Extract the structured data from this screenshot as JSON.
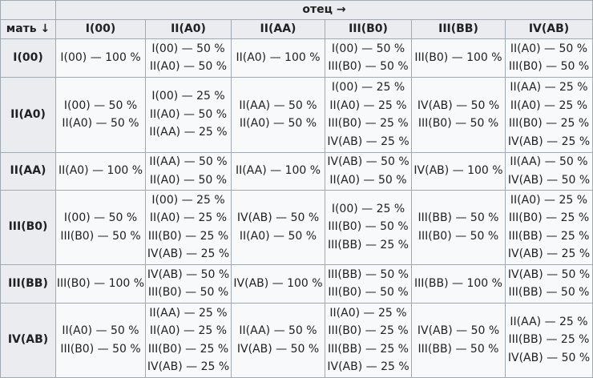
{
  "header": {
    "father_label": "отец →",
    "mother_label": "мать ↓",
    "columns": [
      "I(00)",
      "II(A0)",
      "II(AA)",
      "III(B0)",
      "III(BB)",
      "IV(AB)"
    ]
  },
  "rows": [
    {
      "label": "I(00)",
      "cells": [
        [
          "I(00) — 100 %"
        ],
        [
          "I(00) — 50 %",
          "II(A0) — 50 %"
        ],
        [
          "II(A0) — 100 %"
        ],
        [
          "I(00) — 50 %",
          "III(B0) — 50 %"
        ],
        [
          "III(B0) — 100 %"
        ],
        [
          "II(A0) — 50 %",
          "III(B0) — 50 %"
        ]
      ]
    },
    {
      "label": "II(A0)",
      "cells": [
        [
          "I(00) — 50 %",
          "II(A0) — 50 %"
        ],
        [
          "I(00) — 25 %",
          "II(A0) — 50 %",
          "II(AA) — 25 %"
        ],
        [
          "II(AA) — 50 %",
          "II(A0) — 50 %"
        ],
        [
          "I(00) — 25 %",
          "II(A0) — 25 %",
          "III(B0) — 25 %",
          "IV(AB) — 25 %"
        ],
        [
          "IV(AB) — 50 %",
          "III(B0) — 50 %"
        ],
        [
          "II(AA) — 25 %",
          "II(A0) — 25 %",
          "III(B0) — 25 %",
          "IV(AB) — 25 %"
        ]
      ]
    },
    {
      "label": "II(AA)",
      "cells": [
        [
          "II(A0) — 100 %"
        ],
        [
          "II(AA) — 50 %",
          "II(A0) — 50 %"
        ],
        [
          "II(AA) — 100 %"
        ],
        [
          "IV(AB) — 50 %",
          "II(A0) — 50 %"
        ],
        [
          "IV(AB) — 100 %"
        ],
        [
          "II(AA) — 50 %",
          "IV(AB) — 50 %"
        ]
      ]
    },
    {
      "label": "III(B0)",
      "cells": [
        [
          "I(00) — 50 %",
          "III(B0) — 50 %"
        ],
        [
          "I(00) — 25 %",
          "II(A0) — 25 %",
          "III(B0) — 25 %",
          "IV(AB) — 25 %"
        ],
        [
          "IV(AB) — 50 %",
          "II(A0) — 50 %"
        ],
        [
          "I(00) — 25 %",
          "III(B0) — 50 %",
          "III(BB) — 25 %"
        ],
        [
          "III(BB) — 50 %",
          "III(B0) — 50 %"
        ],
        [
          "II(A0) — 25 %",
          "III(B0) — 25 %",
          "III(BB) — 25 %",
          "IV(AB) — 25 %"
        ]
      ]
    },
    {
      "label": "III(BB)",
      "cells": [
        [
          "III(B0) — 100 %"
        ],
        [
          "IV(AB) — 50 %",
          "III(B0) — 50 %"
        ],
        [
          "IV(AB) — 100 %"
        ],
        [
          "III(BB) — 50 %",
          "III(B0) — 50 %"
        ],
        [
          "III(BB) — 100 %"
        ],
        [
          "IV(AB) — 50 %",
          "III(BB) — 50 %"
        ]
      ]
    },
    {
      "label": "IV(AB)",
      "cells": [
        [
          "II(A0) — 50 %",
          "III(B0) — 50 %"
        ],
        [
          "II(AA) — 25 %",
          "II(A0) — 25 %",
          "III(B0) — 25 %",
          "IV(AB) — 25 %"
        ],
        [
          "II(AA) — 50 %",
          "IV(AB) — 50 %"
        ],
        [
          "II(A0) — 25 %",
          "III(B0) — 25 %",
          "III(BB) — 25 %",
          "IV(AB) — 25 %"
        ],
        [
          "IV(AB) — 50 %",
          "III(BB) — 50 %"
        ],
        [
          "II(AA) — 25 %",
          "III(BB) — 25 %",
          "IV(AB) — 50 %"
        ]
      ]
    }
  ]
}
